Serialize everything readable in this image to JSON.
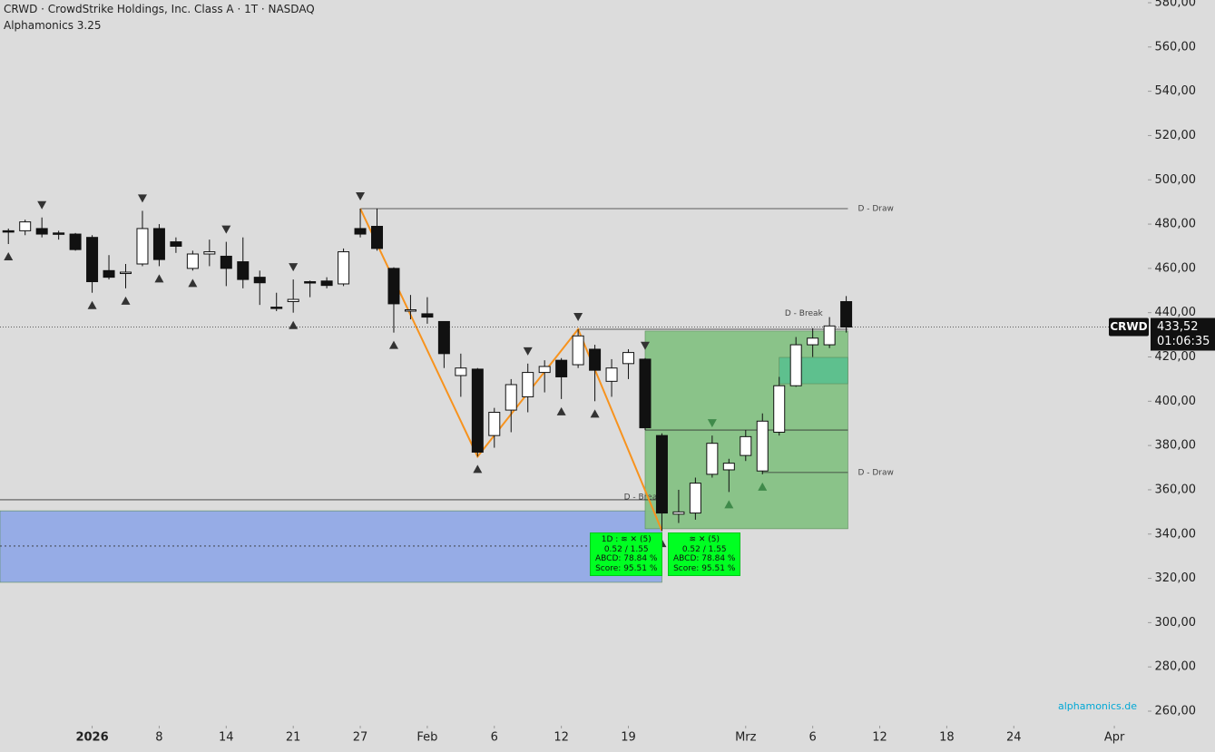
{
  "chart_data": {
    "type": "candlestick",
    "title": "CRWD · CrowdStrike Holdings, Inc. Class A · 1T · NASDAQ",
    "subtitle": "Alphamonics 3.25",
    "symbol": "CRWD",
    "last_price": {
      "value": 433.52,
      "label": "433,52"
    },
    "countdown": "01:06:35",
    "watermark": "alphamonics.de",
    "open": [
      477,
      477,
      478,
      476,
      475.5,
      474,
      459,
      458,
      462,
      478,
      472,
      460,
      466.5,
      465.5,
      463,
      456,
      442.5,
      445,
      454,
      454.3,
      453,
      478,
      479,
      460,
      441,
      439.5,
      436,
      411.6,
      414.5,
      384.5,
      396,
      402,
      413,
      418.5,
      416.5,
      423.5,
      409,
      417,
      419,
      384.5,
      349,
      349.5,
      367,
      369,
      375.5,
      368.5,
      386,
      407,
      425.5,
      425.5,
      445
    ],
    "high": [
      478,
      482,
      483,
      477,
      476,
      475,
      466,
      462,
      486,
      480,
      474,
      468,
      473,
      472,
      474,
      459,
      449,
      455,
      454.5,
      456,
      469,
      487,
      487,
      460.5,
      448,
      447,
      436,
      421.5,
      415,
      397,
      410,
      417,
      418.5,
      419.5,
      432.5,
      425.5,
      419,
      423.5,
      419.5,
      385.5,
      360,
      365.5,
      384.5,
      374,
      387,
      394.5,
      411,
      429,
      433,
      438,
      447.5
    ],
    "low": [
      471,
      475,
      474,
      473,
      468,
      449,
      455,
      451,
      461,
      461,
      467,
      459,
      461,
      452,
      451,
      443.5,
      440.7,
      440,
      447,
      451,
      452,
      474,
      468,
      431,
      437,
      435,
      415,
      402,
      375,
      379,
      386,
      395,
      404,
      401,
      415,
      400,
      402,
      410,
      387,
      341.5,
      345,
      346.5,
      365.5,
      359,
      373,
      367,
      384.5,
      406.5,
      420,
      424,
      431
    ],
    "close": [
      476.5,
      481,
      475.5,
      475.5,
      468.5,
      454,
      456,
      458.3,
      478,
      464,
      470,
      466.5,
      467.5,
      460,
      455,
      453.5,
      442.2,
      446,
      453.8,
      452.3,
      467.5,
      475.5,
      469,
      444,
      441.3,
      438,
      421.5,
      415,
      377,
      395,
      407.5,
      413,
      415.7,
      411,
      429.5,
      414,
      415,
      422,
      388,
      349.5,
      350,
      363,
      381,
      372,
      384,
      391,
      407,
      425.5,
      428.5,
      434,
      433.52
    ],
    "up_color": "#ffffff",
    "down_color": "#111111",
    "xlim": [
      -0.5,
      68
    ],
    "xticks": [
      {
        "value": 5,
        "label": "2026"
      },
      {
        "value": 9,
        "label": "8"
      },
      {
        "value": 13,
        "label": "14"
      },
      {
        "value": 17,
        "label": "21"
      },
      {
        "value": 21,
        "label": "27"
      },
      {
        "value": 25,
        "label": "Feb"
      },
      {
        "value": 29,
        "label": "6"
      },
      {
        "value": 33,
        "label": "12"
      },
      {
        "value": 37,
        "label": "19"
      },
      {
        "value": 44,
        "label": "Mrz"
      },
      {
        "value": 48,
        "label": "6"
      },
      {
        "value": 52,
        "label": "12"
      },
      {
        "value": 56,
        "label": "18"
      },
      {
        "value": 60,
        "label": "24"
      },
      {
        "value": 66,
        "label": "Apr"
      }
    ],
    "ylim": [
      260,
      580
    ],
    "yticks": [
      {
        "value": 260,
        "label": "260,00"
      },
      {
        "value": 280,
        "label": "280,00"
      },
      {
        "value": 300,
        "label": "300,00"
      },
      {
        "value": 320,
        "label": "320,00"
      },
      {
        "value": 340,
        "label": "340,00"
      },
      {
        "value": 360,
        "label": "360,00"
      },
      {
        "value": 380,
        "label": "380,00"
      },
      {
        "value": 400,
        "label": "400,00"
      },
      {
        "value": 420,
        "label": "420,00"
      },
      {
        "value": 440,
        "label": "440,00"
      },
      {
        "value": 460,
        "label": "460,00"
      },
      {
        "value": 480,
        "label": "480,00"
      },
      {
        "value": 500,
        "label": "500,00"
      },
      {
        "value": 520,
        "label": "520,00"
      },
      {
        "value": 540,
        "label": "540,00"
      },
      {
        "value": 560,
        "label": "560,00"
      },
      {
        "value": 580,
        "label": "580,00"
      }
    ],
    "down_markers": [
      2,
      8,
      13,
      17,
      21,
      31,
      34,
      38
    ],
    "up_markers": [
      0,
      5,
      7,
      9,
      11,
      17,
      23,
      28,
      33,
      35,
      39
    ],
    "pattern_down_markers": [
      42
    ],
    "pattern_up_markers": [
      43,
      45
    ],
    "marker_color": "#333333",
    "pattern_marker_color": "#3f8a4a",
    "zigzag": {
      "x": [
        21,
        28,
        34,
        39
      ],
      "values": [
        487,
        375,
        432.5,
        341.5
      ],
      "color": "#f7931e"
    },
    "zones": [
      {
        "from": -0.5,
        "to": 39,
        "top": 350.5,
        "bottom": 318.2,
        "mid": 334.6,
        "color": "#91a9e6"
      },
      {
        "from": 38,
        "to": 50.1,
        "top": 431.7,
        "bottom": 342.4,
        "color": "#85c184"
      },
      {
        "from": 46,
        "to": 50.1,
        "top": 419.8,
        "bottom": 407.9,
        "color": "#5cc08e"
      }
    ],
    "levels": [
      {
        "value": 487,
        "from": 21,
        "to": 50.1,
        "label": "D - Draw",
        "label_position": "right"
      },
      {
        "value": 355.5,
        "from": -0.5,
        "to": 39
      },
      {
        "value": 387,
        "from": 38,
        "to": 50.1
      },
      {
        "value": 367.8,
        "from": 45,
        "to": 50.1,
        "label": "D - Draw",
        "label_position": "right"
      },
      {
        "value": 432.5,
        "from": 34,
        "to": 50.1
      },
      {
        "value": 433.5,
        "from": 48,
        "to": 48.6,
        "label": "D - Break",
        "label_position": "above"
      },
      {
        "value": 350.5,
        "from": 38,
        "to": 39,
        "label": "D - Break",
        "label_position": "above"
      }
    ],
    "info_boxes": [
      {
        "lines": [
          "1D :  ≋ ✕   (5)",
          "0.52 / 1.55",
          "ABCD: 78.84 %",
          "Score: 95.51 %"
        ]
      },
      {
        "lines": [
          "≋ ✕   (5)",
          "0.52 / 1.55",
          "ABCD: 78.84 %",
          "Score: 95.51 %"
        ]
      }
    ]
  }
}
